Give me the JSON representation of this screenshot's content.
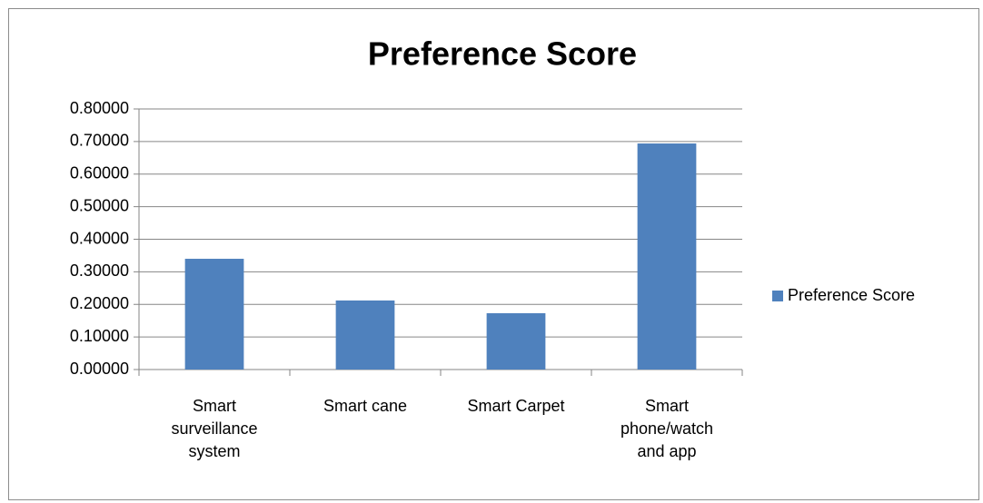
{
  "chart_data": {
    "type": "bar",
    "title": "Preference Score",
    "categories": [
      "Smart surveillance system",
      "Smart cane",
      "Smart Carpet",
      "Smart phone/watch and app"
    ],
    "series": [
      {
        "name": "Preference Score",
        "color": "#4f81bd",
        "values": [
          0.34,
          0.212,
          0.173,
          0.694
        ]
      }
    ],
    "ylim": [
      0,
      0.8
    ],
    "yticks": [
      {
        "value": 0,
        "label": "0.00000"
      },
      {
        "value": 0.1,
        "label": "0.10000"
      },
      {
        "value": 0.2,
        "label": "0.20000"
      },
      {
        "value": 0.3,
        "label": "0.30000"
      },
      {
        "value": 0.4,
        "label": "0.40000"
      },
      {
        "value": 0.5,
        "label": "0.50000"
      },
      {
        "value": 0.6,
        "label": "0.60000"
      },
      {
        "value": 0.7,
        "label": "0.70000"
      },
      {
        "value": 0.8,
        "label": "0.80000"
      }
    ],
    "grid": true,
    "legend": "right"
  }
}
